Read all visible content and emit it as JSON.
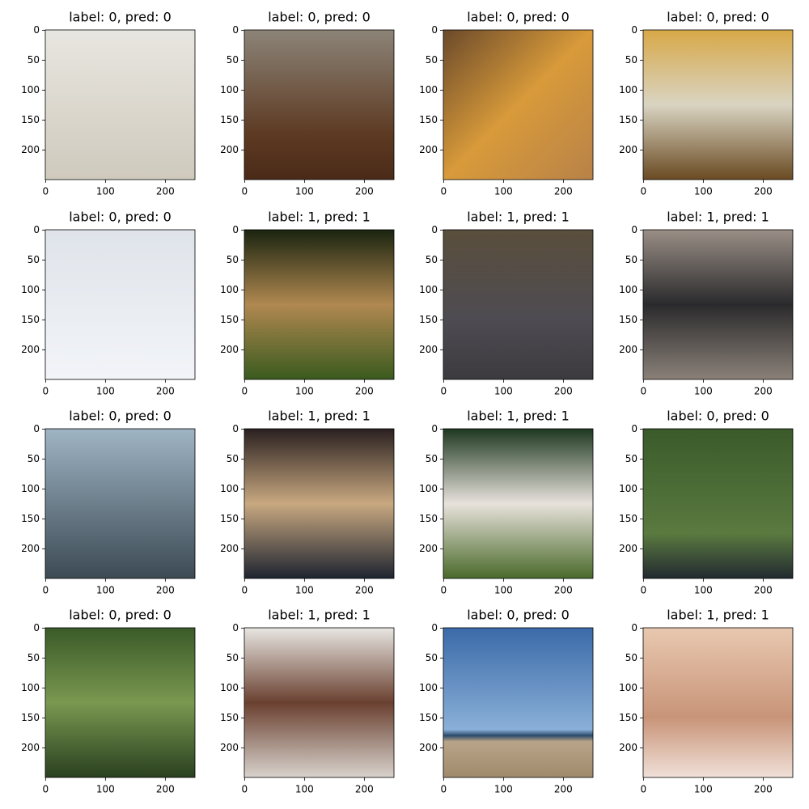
{
  "chart_data": [
    {
      "type": "image",
      "title": "label: 0, pred: 0",
      "xlim": [
        -0.5,
        249.5
      ],
      "ylim": [
        249.5,
        -0.5
      ],
      "xticks": [
        0,
        100,
        200
      ],
      "yticks": [
        0,
        50,
        100,
        150,
        200
      ]
    },
    {
      "type": "image",
      "title": "label: 0, pred: 0",
      "xlim": [
        -0.5,
        249.5
      ],
      "ylim": [
        249.5,
        -0.5
      ],
      "xticks": [
        0,
        100,
        200
      ],
      "yticks": [
        0,
        50,
        100,
        150,
        200
      ]
    },
    {
      "type": "image",
      "title": "label: 0, pred: 0",
      "xlim": [
        -0.5,
        249.5
      ],
      "ylim": [
        249.5,
        -0.5
      ],
      "xticks": [
        0,
        100,
        200
      ],
      "yticks": [
        0,
        50,
        100,
        150,
        200
      ]
    },
    {
      "type": "image",
      "title": "label: 0, pred: 0",
      "xlim": [
        -0.5,
        249.5
      ],
      "ylim": [
        249.5,
        -0.5
      ],
      "xticks": [
        0,
        100,
        200
      ],
      "yticks": [
        0,
        50,
        100,
        150,
        200
      ]
    },
    {
      "type": "image",
      "title": "label: 0, pred: 0",
      "xlim": [
        -0.5,
        249.5
      ],
      "ylim": [
        249.5,
        -0.5
      ],
      "xticks": [
        0,
        100,
        200
      ],
      "yticks": [
        0,
        50,
        100,
        150,
        200
      ]
    },
    {
      "type": "image",
      "title": "label: 1, pred: 1",
      "xlim": [
        -0.5,
        249.5
      ],
      "ylim": [
        249.5,
        -0.5
      ],
      "xticks": [
        0,
        100,
        200
      ],
      "yticks": [
        0,
        50,
        100,
        150,
        200
      ]
    },
    {
      "type": "image",
      "title": "label: 1, pred: 1",
      "xlim": [
        -0.5,
        249.5
      ],
      "ylim": [
        249.5,
        -0.5
      ],
      "xticks": [
        0,
        100,
        200
      ],
      "yticks": [
        0,
        50,
        100,
        150,
        200
      ]
    },
    {
      "type": "image",
      "title": "label: 1, pred: 1",
      "xlim": [
        -0.5,
        249.5
      ],
      "ylim": [
        249.5,
        -0.5
      ],
      "xticks": [
        0,
        100,
        200
      ],
      "yticks": [
        0,
        50,
        100,
        150,
        200
      ]
    },
    {
      "type": "image",
      "title": "label: 0, pred: 0",
      "xlim": [
        -0.5,
        249.5
      ],
      "ylim": [
        249.5,
        -0.5
      ],
      "xticks": [
        0,
        100,
        200
      ],
      "yticks": [
        0,
        50,
        100,
        150,
        200
      ]
    },
    {
      "type": "image",
      "title": "label: 1, pred: 1",
      "xlim": [
        -0.5,
        249.5
      ],
      "ylim": [
        249.5,
        -0.5
      ],
      "xticks": [
        0,
        100,
        200
      ],
      "yticks": [
        0,
        50,
        100,
        150,
        200
      ]
    },
    {
      "type": "image",
      "title": "label: 1, pred: 1",
      "xlim": [
        -0.5,
        249.5
      ],
      "ylim": [
        249.5,
        -0.5
      ],
      "xticks": [
        0,
        100,
        200
      ],
      "yticks": [
        0,
        50,
        100,
        150,
        200
      ]
    },
    {
      "type": "image",
      "title": "label: 0, pred: 0",
      "xlim": [
        -0.5,
        249.5
      ],
      "ylim": [
        249.5,
        -0.5
      ],
      "xticks": [
        0,
        100,
        200
      ],
      "yticks": [
        0,
        50,
        100,
        150,
        200
      ]
    },
    {
      "type": "image",
      "title": "label: 0, pred: 0",
      "xlim": [
        -0.5,
        249.5
      ],
      "ylim": [
        249.5,
        -0.5
      ],
      "xticks": [
        0,
        100,
        200
      ],
      "yticks": [
        0,
        50,
        100,
        150,
        200
      ]
    },
    {
      "type": "image",
      "title": "label: 1, pred: 1",
      "xlim": [
        -0.5,
        249.5
      ],
      "ylim": [
        249.5,
        -0.5
      ],
      "xticks": [
        0,
        100,
        200
      ],
      "yticks": [
        0,
        50,
        100,
        150,
        200
      ]
    },
    {
      "type": "image",
      "title": "label: 0, pred: 0",
      "xlim": [
        -0.5,
        249.5
      ],
      "ylim": [
        249.5,
        -0.5
      ],
      "xticks": [
        0,
        100,
        200
      ],
      "yticks": [
        0,
        50,
        100,
        150,
        200
      ]
    },
    {
      "type": "image",
      "title": "label: 1, pred: 1",
      "xlim": [
        -0.5,
        249.5
      ],
      "ylim": [
        249.5,
        -0.5
      ],
      "xticks": [
        0,
        100,
        200
      ],
      "yticks": [
        0,
        50,
        100,
        150,
        200
      ]
    }
  ]
}
